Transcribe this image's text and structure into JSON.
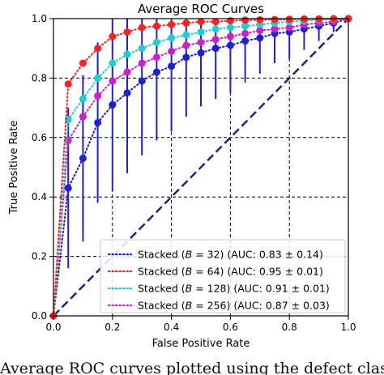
{
  "caption": "Average ROC curves plotted using the defect classification",
  "chart_data": {
    "type": "line",
    "title": "Average ROC Curves",
    "xlabel": "False Positive Rate",
    "ylabel": "True Positive Rate",
    "xlim": [
      0.0,
      1.0
    ],
    "ylim": [
      0.0,
      1.0
    ],
    "xticks": [
      "0.0",
      "0.2",
      "0.4",
      "0.6",
      "0.8",
      "1.0"
    ],
    "yticks": [
      "0.0",
      "0.2",
      "0.4",
      "0.6",
      "0.8",
      "1.0"
    ],
    "grid": true,
    "legend_position": "bottom-right",
    "x": [
      0.0,
      0.05,
      0.1,
      0.15,
      0.2,
      0.25,
      0.3,
      0.35,
      0.4,
      0.45,
      0.5,
      0.55,
      0.6,
      0.65,
      0.7,
      0.75,
      0.8,
      0.85,
      0.9,
      0.95,
      1.0
    ],
    "series": [
      {
        "name": "Stacked (B = 32) (AUC: 0.83 ± 0.14)",
        "label_prefix": "Stacked (",
        "label_var": "B",
        "label_eq": " = 32) (AUC: 0.83 ± 0.14)",
        "color": "#1f1fd6",
        "y": [
          0.0,
          0.43,
          0.53,
          0.65,
          0.71,
          0.75,
          0.79,
          0.82,
          0.84,
          0.87,
          0.885,
          0.9,
          0.91,
          0.925,
          0.935,
          0.95,
          0.955,
          0.965,
          0.975,
          0.985,
          1.0
        ],
        "err": [
          0.0,
          0.27,
          0.28,
          0.27,
          0.29,
          0.27,
          0.25,
          0.23,
          0.22,
          0.2,
          0.18,
          0.17,
          0.16,
          0.14,
          0.12,
          0.1,
          0.09,
          0.07,
          0.05,
          0.03,
          0.0
        ]
      },
      {
        "name": "Stacked (B = 64) (AUC: 0.95 ± 0.01)",
        "label_prefix": "Stacked (",
        "label_var": "B",
        "label_eq": " = 64) (AUC: 0.95 ± 0.01)",
        "color": "#ff2020",
        "y": [
          0.0,
          0.78,
          0.85,
          0.9,
          0.94,
          0.955,
          0.97,
          0.975,
          0.98,
          0.985,
          0.99,
          0.99,
          0.993,
          0.995,
          0.996,
          0.997,
          0.998,
          0.999,
          0.999,
          1.0,
          1.0
        ],
        "err": []
      },
      {
        "name": "Stacked (B = 128) (AUC: 0.91 ± 0.01)",
        "label_prefix": "Stacked (",
        "label_var": "B",
        "label_eq": " = 128) (AUC: 0.91 ± 0.01)",
        "color": "#1fcfcf",
        "y": [
          0.0,
          0.66,
          0.73,
          0.8,
          0.85,
          0.88,
          0.9,
          0.92,
          0.935,
          0.945,
          0.955,
          0.965,
          0.97,
          0.975,
          0.98,
          0.985,
          0.99,
          0.993,
          0.996,
          0.998,
          1.0
        ],
        "err": []
      },
      {
        "name": "Stacked (B = 256) (AUC: 0.87 ± 0.03)",
        "label_prefix": "Stacked (",
        "label_var": "B",
        "label_eq": " = 256) (AUC: 0.87 ± 0.03)",
        "color": "#cc20cc",
        "y": [
          0.0,
          0.59,
          0.67,
          0.74,
          0.79,
          0.82,
          0.85,
          0.87,
          0.89,
          0.91,
          0.92,
          0.93,
          0.94,
          0.95,
          0.96,
          0.965,
          0.97,
          0.98,
          0.985,
          0.99,
          1.0
        ],
        "err": []
      }
    ],
    "chance_line": {
      "x": [
        0,
        1
      ],
      "y": [
        0,
        1
      ],
      "color": "#1a237e"
    }
  }
}
